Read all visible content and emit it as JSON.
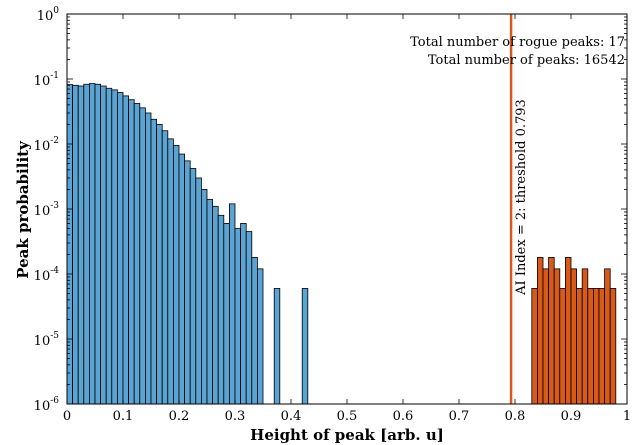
{
  "chart_data": {
    "type": "bar",
    "xlabel": "Height of peak [arb. u]",
    "ylabel": "Peak probability",
    "xlim": [
      0,
      1
    ],
    "ylim": [
      1e-06,
      1
    ],
    "yscale": "log",
    "bin_width": 0.01,
    "x_ticks": [
      "0",
      "0.1",
      "0.2",
      "0.3",
      "0.4",
      "0.5",
      "0.6",
      "0.7",
      "0.8",
      "0.9",
      "1"
    ],
    "y_ticks": [
      {
        "base": "10",
        "exp": "0"
      },
      {
        "base": "10",
        "exp": "-1"
      },
      {
        "base": "10",
        "exp": "-2"
      },
      {
        "base": "10",
        "exp": "-3"
      },
      {
        "base": "10",
        "exp": "-4"
      },
      {
        "base": "10",
        "exp": "-5"
      },
      {
        "base": "10",
        "exp": "-6"
      }
    ],
    "grid": false,
    "series": [
      {
        "color": "#5ba3d3",
        "bin_starts": [
          0.0,
          0.01,
          0.02,
          0.03,
          0.04,
          0.05,
          0.06,
          0.07,
          0.08,
          0.09,
          0.1,
          0.11,
          0.12,
          0.13,
          0.14,
          0.15,
          0.16,
          0.17,
          0.18,
          0.19,
          0.2,
          0.21,
          0.22,
          0.23,
          0.24,
          0.25,
          0.26,
          0.27,
          0.28,
          0.29,
          0.3,
          0.31,
          0.32,
          0.33,
          0.34,
          0.37,
          0.42
        ],
        "values": [
          0.082,
          0.08,
          0.078,
          0.083,
          0.085,
          0.083,
          0.078,
          0.072,
          0.068,
          0.062,
          0.055,
          0.048,
          0.042,
          0.036,
          0.03,
          0.024,
          0.02,
          0.016,
          0.012,
          0.0095,
          0.007,
          0.0055,
          0.0042,
          0.003,
          0.002,
          0.0014,
          0.0011,
          0.0008,
          0.0006,
          0.0012,
          0.0005,
          0.0006,
          0.00045,
          0.00018,
          0.00012,
          6e-05,
          6e-05
        ]
      },
      {
        "color": "#d85a1a",
        "bin_starts": [
          0.83,
          0.84,
          0.85,
          0.86,
          0.87,
          0.88,
          0.89,
          0.9,
          0.91,
          0.92,
          0.93,
          0.94,
          0.95,
          0.96,
          0.97
        ],
        "values": [
          6e-05,
          0.00018,
          0.00012,
          0.00018,
          0.00012,
          6e-05,
          0.00018,
          0.00012,
          6e-05,
          0.00012,
          6e-05,
          6e-05,
          6e-05,
          0.00012,
          6e-05
        ]
      }
    ],
    "threshold": {
      "x": 0.793,
      "color": "#d85a1a",
      "label": "AI Index = 2: threshold 0.793"
    },
    "annotations": [
      "Total number of rogue peaks: 17",
      "Total number of peaks: 16542"
    ]
  }
}
